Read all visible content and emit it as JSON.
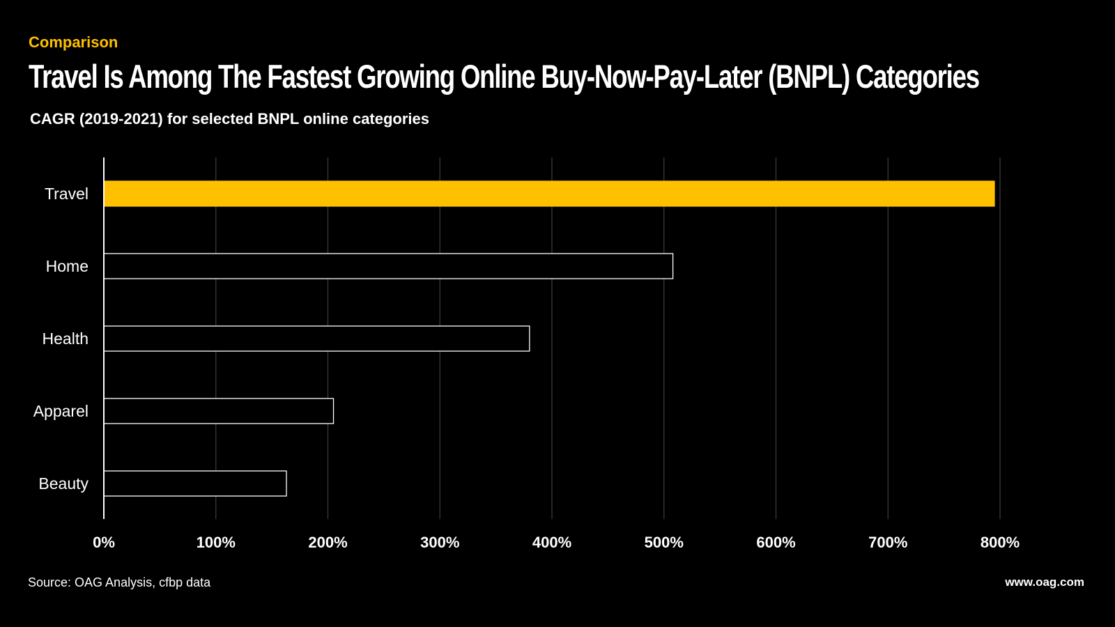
{
  "header": {
    "kicker": "Comparison",
    "title": "Travel Is Among The Fastest Growing Online Buy-Now-Pay-Later (BNPL) Categories",
    "subtitle": "CAGR (2019-2021) for selected BNPL online categories"
  },
  "footer": {
    "source": "Source: OAG Analysis, cfbp data",
    "site": "www.oag.com"
  },
  "colors": {
    "background": "#000000",
    "highlight": "#ffc000",
    "bar_outline": "#ffffff",
    "grid": "#3a3a3a",
    "text": "#ffffff"
  },
  "chart_data": {
    "type": "bar",
    "orientation": "horizontal",
    "categories": [
      "Travel",
      "Home",
      "Health",
      "Apparel",
      "Beauty"
    ],
    "values": [
      795,
      508,
      380,
      205,
      163
    ],
    "highlight": "Travel",
    "xlim": [
      0,
      800
    ],
    "xticks": [
      0,
      100,
      200,
      300,
      400,
      500,
      600,
      700,
      800
    ],
    "tick_labels": [
      "0%",
      "100%",
      "200%",
      "300%",
      "400%",
      "500%",
      "600%",
      "700%",
      "800%"
    ],
    "grid": true,
    "legend": "none"
  }
}
